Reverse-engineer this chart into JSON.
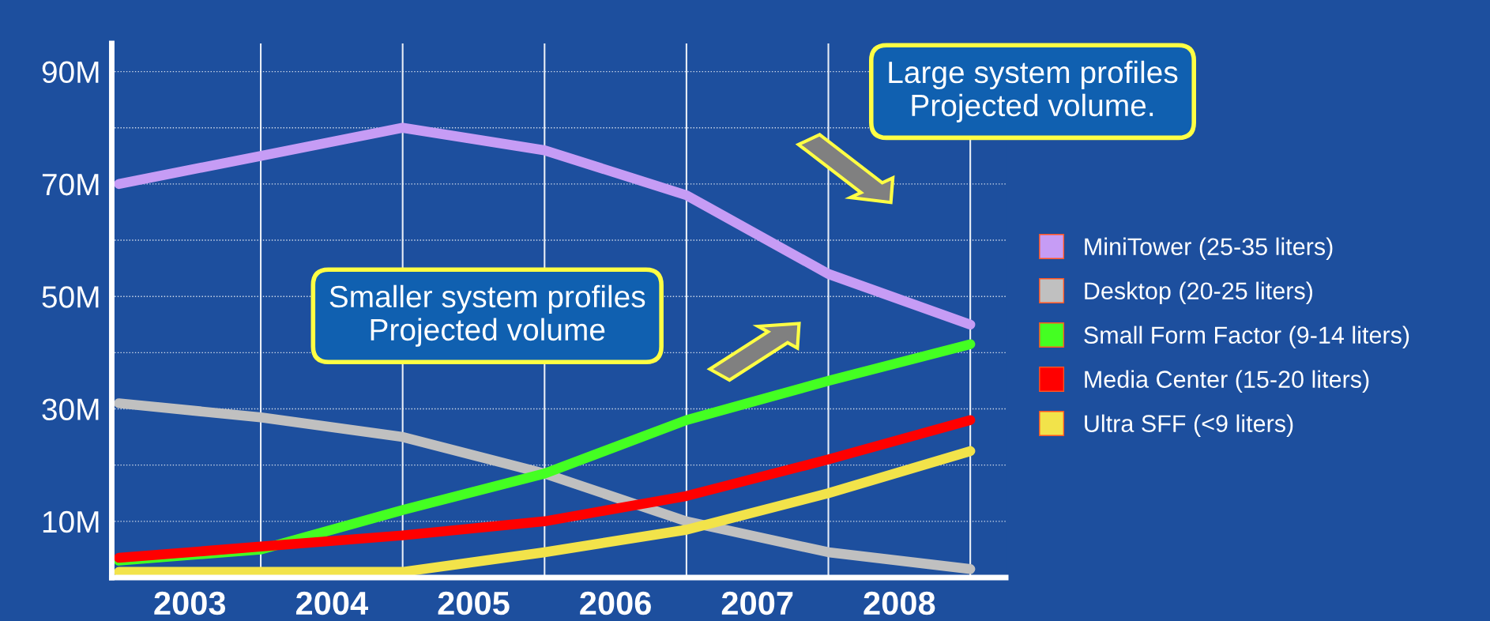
{
  "chart_data": {
    "type": "line",
    "xlim": [
      2002.95,
      2009.25
    ],
    "ylim": [
      0,
      95
    ],
    "xticks": [
      {
        "value": 2003.5,
        "label": "2003"
      },
      {
        "value": 2004.5,
        "label": "2004"
      },
      {
        "value": 2005.5,
        "label": "2005"
      },
      {
        "value": 2006.5,
        "label": "2006"
      },
      {
        "value": 2007.5,
        "label": "2007"
      },
      {
        "value": 2008.5,
        "label": "2008"
      }
    ],
    "yticks": [
      {
        "value": 10,
        "label": "10M"
      },
      {
        "value": 20,
        "label": null
      },
      {
        "value": 30,
        "label": "30M"
      },
      {
        "value": 40,
        "label": null
      },
      {
        "value": 50,
        "label": "50M"
      },
      {
        "value": 60,
        "label": null
      },
      {
        "value": 70,
        "label": "70M"
      },
      {
        "value": 80,
        "label": null
      },
      {
        "value": 90,
        "label": "90M"
      }
    ],
    "x": [
      2003,
      2004,
      2005,
      2006,
      2007,
      2008,
      2009
    ],
    "grid": "y",
    "legend": "right",
    "line_style": "solid",
    "ref_lines": [
      {
        "axis": "x",
        "value": 2004
      },
      {
        "axis": "x",
        "value": 2005
      },
      {
        "axis": "x",
        "value": 2006
      },
      {
        "axis": "x",
        "value": 2007
      },
      {
        "axis": "x",
        "value": 2008
      },
      {
        "axis": "x",
        "value": 2009
      }
    ],
    "annotations": [
      "Large system profiles\nProjected volume.",
      "Smaller system profiles\nProjected volume"
    ],
    "series": [
      {
        "name": "MiniTower (25-35 liters)",
        "color": "#c69cf5",
        "values": [
          70,
          75,
          80,
          76,
          68,
          54,
          45
        ]
      },
      {
        "name": "Desktop (20-25 liters)",
        "color": "#c0c0c0",
        "values": [
          31,
          28.5,
          25,
          18.5,
          10,
          4.5,
          1.5
        ]
      },
      {
        "name": "Small Form Factor (9-14 liters)",
        "color": "#44ff22",
        "values": [
          3,
          5,
          12,
          18.5,
          28,
          35,
          41.5
        ]
      },
      {
        "name": "Media Center (15-20 liters)",
        "color": "#ff0000",
        "values": [
          3.5,
          5.5,
          7.5,
          10,
          14.5,
          21,
          28
        ]
      },
      {
        "name": "Ultra SFF (<9 liters)",
        "color": "#f2e34a",
        "values": [
          1,
          1,
          1,
          4.5,
          8.5,
          15,
          22.5
        ]
      }
    ]
  }
}
